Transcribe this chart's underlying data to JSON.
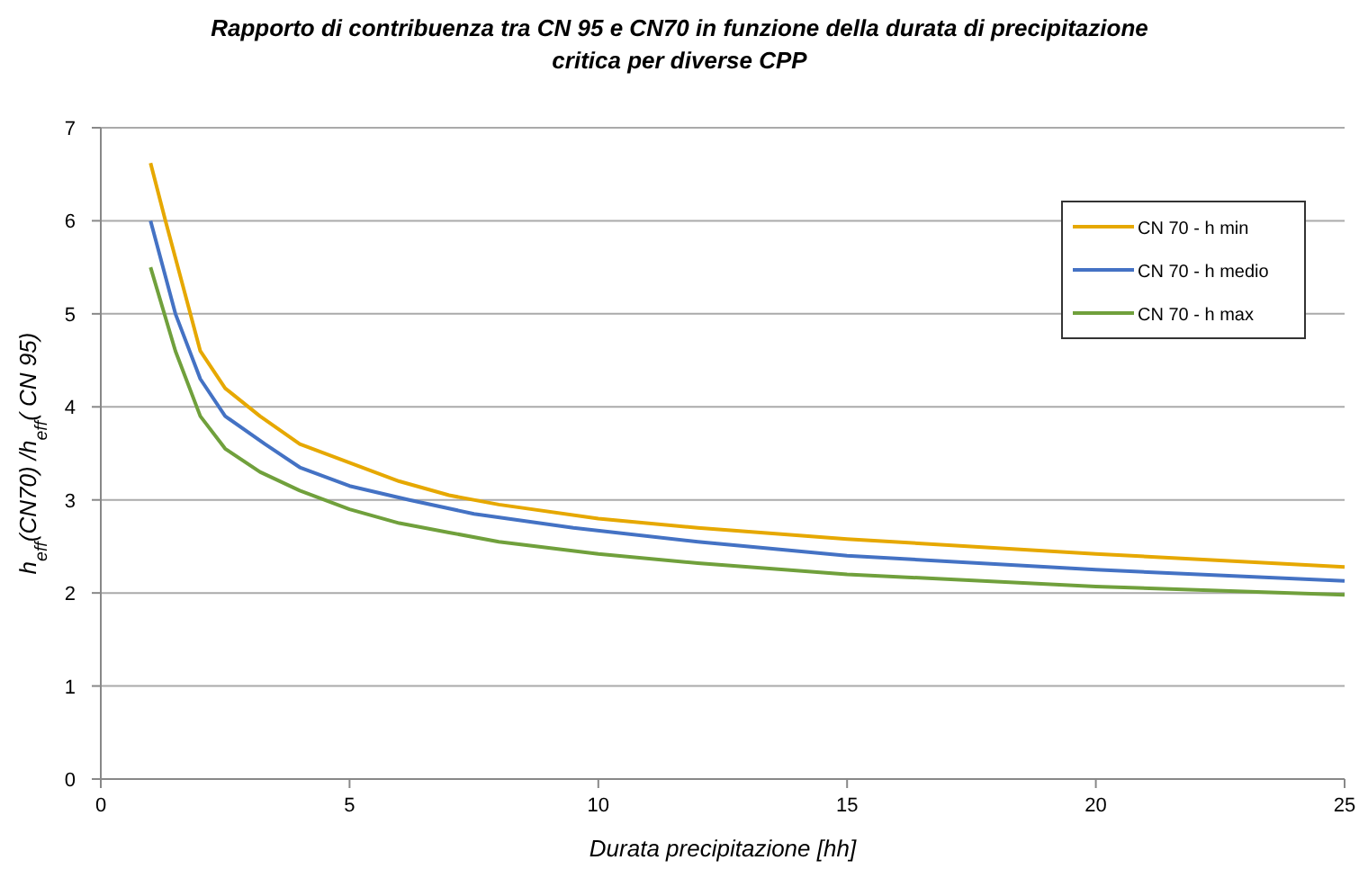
{
  "chart_data": {
    "type": "line",
    "title": "Rapporto di contribuenza tra CN 95 e CN70 in funzione della durata di precipitazione critica per diverse CPP",
    "xlabel": "Durata precipitazione [hh]",
    "ylabel": "h$_{eff}$(CN70) /h$_{eff}$( CN 95)",
    "xlim": [
      0,
      25
    ],
    "xticks": [
      0,
      5,
      10,
      15,
      20,
      25
    ],
    "ylim": [
      0,
      7
    ],
    "yticks": [
      0,
      1,
      2,
      3,
      4,
      5,
      6,
      7
    ],
    "grid": "y",
    "legend": "top right",
    "series": [
      {
        "name": "CN 70 - h min",
        "color": "#e6a800",
        "x": [
          1,
          1.3,
          1.5,
          1.8,
          2,
          2.5,
          3.2,
          4,
          5,
          6,
          7,
          8,
          10,
          12,
          15,
          20,
          25
        ],
        "values": [
          6.62,
          6.0,
          5.6,
          5.0,
          4.6,
          4.2,
          3.9,
          3.6,
          3.4,
          3.2,
          3.05,
          2.95,
          2.8,
          2.7,
          2.58,
          2.42,
          2.28
        ]
      },
      {
        "name": "CN 70 - h medio",
        "color": "#4472c4",
        "x": [
          1,
          1.5,
          2,
          2.5,
          3.3,
          4,
          5,
          6.2,
          7.5,
          9.5,
          12,
          15,
          20,
          25
        ],
        "values": [
          6.0,
          5.0,
          4.3,
          3.9,
          3.6,
          3.35,
          3.15,
          3.0,
          2.85,
          2.7,
          2.55,
          2.4,
          2.25,
          2.13
        ]
      },
      {
        "name": "CN 70 - h max",
        "color": "#70a03c",
        "x": [
          1,
          1.5,
          2,
          2.5,
          3.2,
          4,
          5,
          6,
          7,
          8,
          10,
          12,
          15,
          20,
          25
        ],
        "values": [
          5.5,
          4.6,
          3.9,
          3.55,
          3.3,
          3.1,
          2.9,
          2.75,
          2.65,
          2.55,
          2.42,
          2.32,
          2.2,
          2.07,
          1.98
        ]
      }
    ]
  }
}
